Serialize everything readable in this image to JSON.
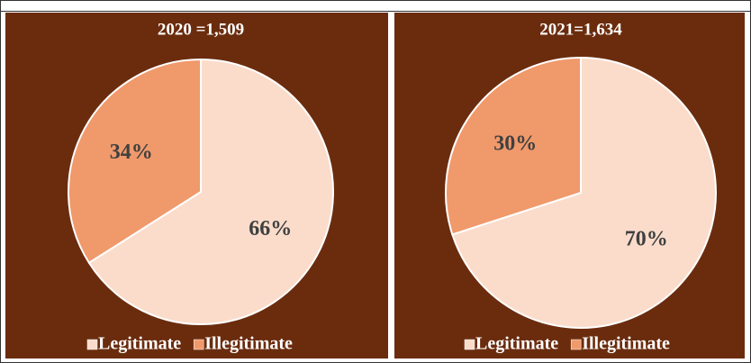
{
  "chart_data": [
    {
      "type": "pie",
      "title": "2020 =1,509",
      "categories": [
        "Legitimate",
        "Illegitimate"
      ],
      "values": [
        66,
        34
      ],
      "value_labels": [
        "66%",
        "34%"
      ],
      "colors": [
        "#fbdccb",
        "#f0996b"
      ],
      "legend": "bottom"
    },
    {
      "type": "pie",
      "title": "2021=1,634",
      "categories": [
        "Legitimate",
        "Illegitimate"
      ],
      "values": [
        70,
        30
      ],
      "value_labels": [
        "70%",
        "30%"
      ],
      "colors": [
        "#fbdccb",
        "#f0996b"
      ],
      "legend": "bottom"
    }
  ]
}
